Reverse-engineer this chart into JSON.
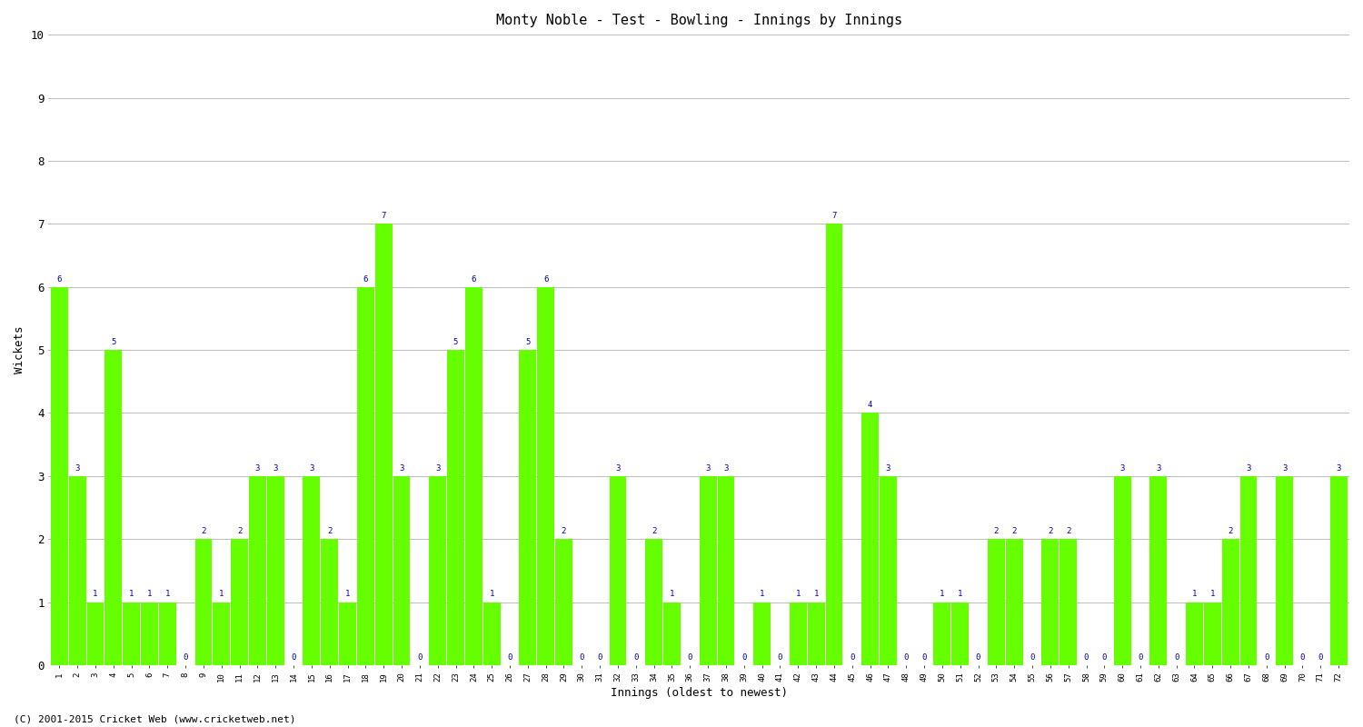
{
  "title": "Monty Noble - Test - Bowling - Innings by Innings",
  "xlabel": "Innings (oldest to newest)",
  "ylabel": "Wickets",
  "ylim": [
    0,
    10
  ],
  "yticks": [
    0,
    1,
    2,
    3,
    4,
    5,
    6,
    7,
    8,
    9,
    10
  ],
  "bar_color": "#66ff00",
  "label_color": "#0000aa",
  "background_color": "#ffffff",
  "grid_color": "#bbbbbb",
  "footer": "(C) 2001-2015 Cricket Web (www.cricketweb.net)",
  "wickets": [
    6,
    3,
    1,
    5,
    1,
    1,
    1,
    0,
    2,
    1,
    2,
    3,
    3,
    0,
    3,
    2,
    1,
    6,
    7,
    3,
    0,
    3,
    5,
    6,
    1,
    0,
    5,
    6,
    2,
    0,
    0,
    3,
    0,
    2,
    1,
    0,
    3,
    3,
    0,
    1,
    0,
    1,
    1,
    7,
    0,
    4,
    3,
    0,
    0,
    1,
    1,
    0,
    2,
    2,
    0,
    2,
    2,
    0,
    0,
    3,
    0,
    3,
    0,
    1,
    1,
    2,
    3,
    0,
    3,
    0,
    0,
    3
  ],
  "x_labels": [
    "1",
    "2",
    "3",
    "4",
    "5",
    "6",
    "7",
    "8",
    "9",
    "10",
    "11",
    "12",
    "13",
    "14",
    "15",
    "16",
    "17",
    "18",
    "19",
    "20",
    "21",
    "22",
    "23",
    "24",
    "25",
    "26",
    "27",
    "28",
    "29",
    "30",
    "31",
    "32",
    "33",
    "34",
    "35",
    "36",
    "37",
    "38",
    "39",
    "40",
    "41",
    "42",
    "43",
    "44",
    "45",
    "46",
    "47",
    "48",
    "49",
    "50",
    "51",
    "52",
    "53",
    "54",
    "55",
    "56",
    "57",
    "58",
    "59",
    "60",
    "61",
    "62",
    "63",
    "64",
    "65",
    "66",
    "67",
    "68",
    "69",
    "70",
    "71",
    "72"
  ]
}
